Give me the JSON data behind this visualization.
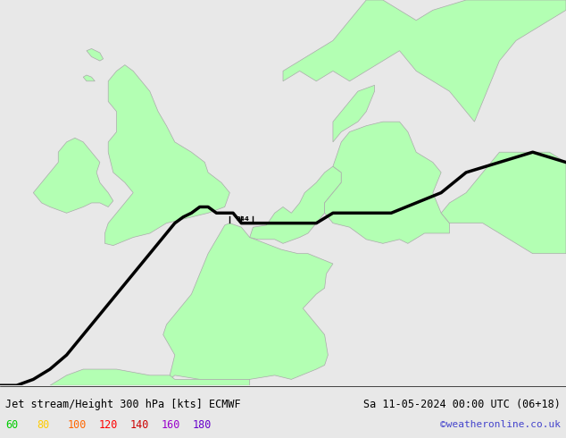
{
  "title_left": "Jet stream/Height 300 hPa [kts] ECMWF",
  "title_right": "Sa 11-05-2024 00:00 UTC (06+18)",
  "credit": "©weatheronline.co.uk",
  "legend_values": [
    "60",
    "80",
    "100",
    "120",
    "140",
    "160",
    "180"
  ],
  "legend_colors": [
    "#00cc00",
    "#ffcc00",
    "#ff6600",
    "#ff0000",
    "#cc0000",
    "#9900cc",
    "#6600cc"
  ],
  "background_color": "#e8e8e8",
  "land_color": "#b3ffb3",
  "border_color": "#aaaaaa",
  "jet_color": "#000000",
  "fig_width": 6.34,
  "fig_height": 4.9,
  "dpi": 100
}
